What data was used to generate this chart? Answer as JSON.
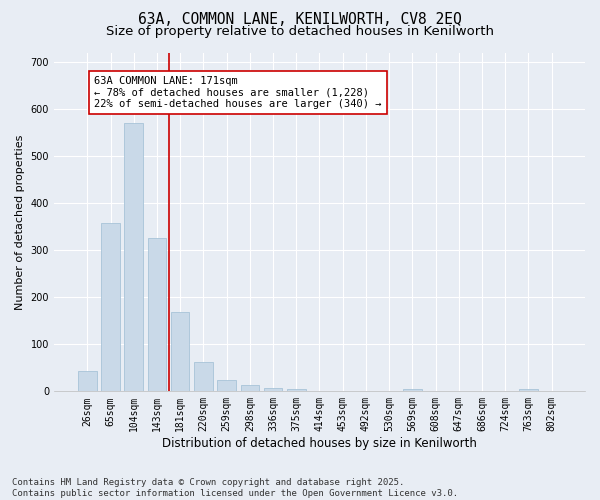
{
  "title": "63A, COMMON LANE, KENILWORTH, CV8 2EQ",
  "subtitle": "Size of property relative to detached houses in Kenilworth",
  "xlabel": "Distribution of detached houses by size in Kenilworth",
  "ylabel": "Number of detached properties",
  "categories": [
    "26sqm",
    "65sqm",
    "104sqm",
    "143sqm",
    "181sqm",
    "220sqm",
    "259sqm",
    "298sqm",
    "336sqm",
    "375sqm",
    "414sqm",
    "453sqm",
    "492sqm",
    "530sqm",
    "569sqm",
    "608sqm",
    "647sqm",
    "686sqm",
    "724sqm",
    "763sqm",
    "802sqm"
  ],
  "values": [
    43,
    358,
    570,
    325,
    168,
    62,
    25,
    13,
    8,
    4,
    0,
    0,
    0,
    0,
    6,
    0,
    0,
    0,
    0,
    5,
    0
  ],
  "bar_color": "#c9d9e8",
  "bar_edge_color": "#a8c4d8",
  "vline_color": "#cc0000",
  "annotation_text": "63A COMMON LANE: 171sqm\n← 78% of detached houses are smaller (1,228)\n22% of semi-detached houses are larger (340) →",
  "annotation_box_color": "#ffffff",
  "annotation_box_edge_color": "#cc0000",
  "ylim": [
    0,
    720
  ],
  "yticks": [
    0,
    100,
    200,
    300,
    400,
    500,
    600,
    700
  ],
  "background_color": "#e8edf4",
  "plot_bg_color": "#e8edf4",
  "grid_color": "#ffffff",
  "footer_text": "Contains HM Land Registry data © Crown copyright and database right 2025.\nContains public sector information licensed under the Open Government Licence v3.0.",
  "title_fontsize": 10.5,
  "subtitle_fontsize": 9.5,
  "xlabel_fontsize": 8.5,
  "ylabel_fontsize": 8,
  "tick_fontsize": 7,
  "annotation_fontsize": 7.5,
  "footer_fontsize": 6.5
}
